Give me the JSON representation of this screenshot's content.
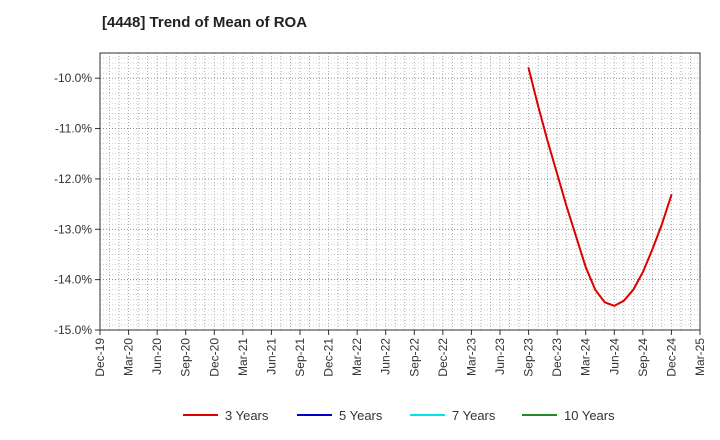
{
  "chart_data": {
    "type": "line",
    "title": "[4448]  Trend of Mean of ROA",
    "xlabel": "",
    "ylabel": "",
    "x_ticks": [
      "Dec-19",
      "Mar-20",
      "Jun-20",
      "Sep-20",
      "Dec-20",
      "Mar-21",
      "Jun-21",
      "Sep-21",
      "Dec-21",
      "Mar-22",
      "Jun-22",
      "Sep-22",
      "Dec-22",
      "Mar-23",
      "Jun-23",
      "Sep-23",
      "Dec-23",
      "Mar-24",
      "Jun-24",
      "Sep-24",
      "Dec-24",
      "Mar-25"
    ],
    "ylim": [
      -15.0,
      -9.5
    ],
    "y_ticks": [
      -10.0,
      -11.0,
      -12.0,
      -13.0,
      -14.0,
      -15.0
    ],
    "y_tick_labels": [
      "-10.0%",
      "-11.0%",
      "-12.0%",
      "-13.0%",
      "-14.0%",
      "-15.0%"
    ],
    "grid": true,
    "legend_position": "bottom",
    "series": [
      {
        "name": "3 Years",
        "color": "#dd0000",
        "points": [
          {
            "x": "Sep-23",
            "y": -9.8
          },
          {
            "x": "Oct-23",
            "y": -10.55
          },
          {
            "x": "Nov-23",
            "y": -11.25
          },
          {
            "x": "Dec-23",
            "y": -11.9
          },
          {
            "x": "Jan-24",
            "y": -12.55
          },
          {
            "x": "Feb-24",
            "y": -13.15
          },
          {
            "x": "Mar-24",
            "y": -13.75
          },
          {
            "x": "Apr-24",
            "y": -14.2
          },
          {
            "x": "May-24",
            "y": -14.45
          },
          {
            "x": "Jun-24",
            "y": -14.52
          },
          {
            "x": "Jul-24",
            "y": -14.42
          },
          {
            "x": "Aug-24",
            "y": -14.2
          },
          {
            "x": "Sep-24",
            "y": -13.85
          },
          {
            "x": "Oct-24",
            "y": -13.4
          },
          {
            "x": "Nov-24",
            "y": -12.9
          },
          {
            "x": "Dec-24",
            "y": -12.32
          }
        ]
      },
      {
        "name": "5 Years",
        "color": "#0000cc",
        "points": []
      },
      {
        "name": "7 Years",
        "color": "#00e5ee",
        "points": []
      },
      {
        "name": "10 Years",
        "color": "#228b22",
        "points": []
      }
    ]
  }
}
